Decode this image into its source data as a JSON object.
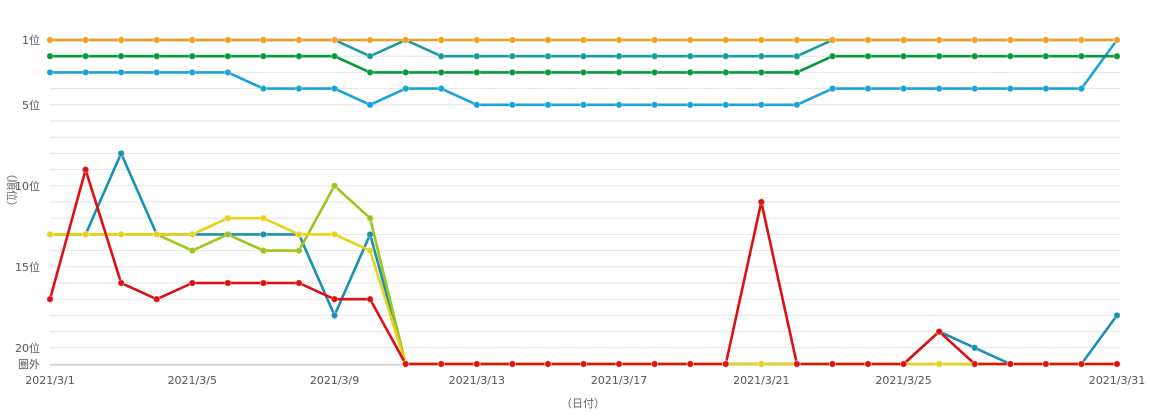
{
  "chart_data": {
    "type": "line",
    "xlabel": "（日付）",
    "ylabel": "（順位）",
    "x_ticks": [
      "2021/3/1",
      "2021/3/5",
      "2021/3/9",
      "2021/3/13",
      "2021/3/17",
      "2021/3/21",
      "2021/3/25",
      "2021/3/31"
    ],
    "y_ticks": [
      {
        "value": 1,
        "label": "1位"
      },
      {
        "value": 5,
        "label": "5位"
      },
      {
        "value": 10,
        "label": "10位"
      },
      {
        "value": 15,
        "label": "15位"
      },
      {
        "value": 20,
        "label": "20位"
      },
      {
        "value": 21,
        "label": "圏外"
      }
    ],
    "y_reversed": true,
    "y_range": [
      1,
      21
    ],
    "grid": true,
    "legend": "none",
    "dates": [
      "2021/3/1",
      "2021/3/2",
      "2021/3/3",
      "2021/3/4",
      "2021/3/5",
      "2021/3/6",
      "2021/3/7",
      "2021/3/8",
      "2021/3/9",
      "2021/3/10",
      "2021/3/11",
      "2021/3/12",
      "2021/3/13",
      "2021/3/14",
      "2021/3/15",
      "2021/3/16",
      "2021/3/17",
      "2021/3/18",
      "2021/3/19",
      "2021/3/20",
      "2021/3/21",
      "2021/3/22",
      "2021/3/23",
      "2021/3/24",
      "2021/3/25",
      "2021/3/26",
      "2021/3/27",
      "2021/3/28",
      "2021/3/29",
      "2021/3/30",
      "2021/3/31"
    ],
    "series": [
      {
        "color": "#1a9aa0",
        "values": [
          1,
          1,
          1,
          1,
          1,
          1,
          1,
          1,
          1,
          2,
          1,
          2,
          2,
          2,
          2,
          2,
          2,
          2,
          2,
          2,
          2,
          2,
          1,
          1,
          1,
          1,
          1,
          1,
          1,
          1,
          1
        ]
      },
      {
        "color": "#1aa3d9",
        "values": [
          3,
          3,
          3,
          3,
          3,
          3,
          4,
          4,
          4,
          5,
          4,
          4,
          5,
          5,
          5,
          5,
          5,
          5,
          5,
          5,
          5,
          5,
          4,
          4,
          4,
          4,
          4,
          4,
          4,
          4,
          1
        ]
      },
      {
        "color": "#0a9a35",
        "values": [
          2,
          2,
          2,
          2,
          2,
          2,
          2,
          2,
          2,
          3,
          3,
          3,
          3,
          3,
          3,
          3,
          3,
          3,
          3,
          3,
          3,
          3,
          2,
          2,
          2,
          2,
          2,
          2,
          2,
          2,
          2
        ]
      },
      {
        "color": "#f0a020",
        "values": [
          1,
          1,
          1,
          1,
          1,
          1,
          1,
          1,
          1,
          1,
          1,
          1,
          1,
          1,
          1,
          1,
          1,
          1,
          1,
          1,
          1,
          1,
          1,
          1,
          1,
          1,
          1,
          1,
          1,
          1,
          1
        ]
      },
      {
        "color": "#1891b3",
        "values": [
          13,
          13,
          8,
          13,
          13,
          13,
          13,
          13,
          18,
          13,
          21,
          21,
          21,
          21,
          21,
          21,
          21,
          21,
          21,
          21,
          21,
          21,
          21,
          21,
          21,
          19,
          20,
          21,
          21,
          21,
          18
        ]
      },
      {
        "color": "#9cc71a",
        "values": [
          13,
          13,
          13,
          13,
          14,
          13,
          14,
          14,
          10,
          12,
          21,
          21,
          21,
          21,
          21,
          21,
          21,
          21,
          21,
          21,
          21,
          21,
          21,
          21,
          21,
          21,
          21,
          21,
          21,
          21,
          21
        ]
      },
      {
        "color": "#e8d21a",
        "values": [
          13,
          13,
          13,
          13,
          13,
          12,
          12,
          13,
          13,
          14,
          21,
          21,
          21,
          21,
          21,
          21,
          21,
          21,
          21,
          21,
          21,
          21,
          21,
          21,
          21,
          21,
          21,
          21,
          21,
          21,
          21
        ]
      },
      {
        "color": "#e01010",
        "values": [
          17,
          9,
          16,
          17,
          16,
          16,
          16,
          16,
          17,
          17,
          21,
          21,
          21,
          21,
          21,
          21,
          21,
          21,
          21,
          21,
          11,
          21,
          21,
          21,
          21,
          19,
          21,
          21,
          21,
          21,
          21
        ]
      }
    ]
  }
}
